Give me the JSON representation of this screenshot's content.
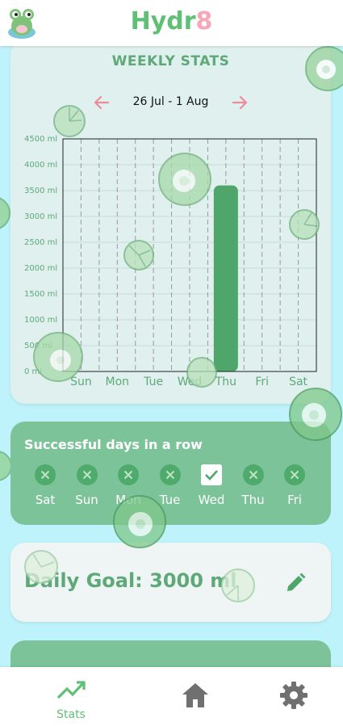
{
  "app": {
    "title_main": "Hydr",
    "title_accent": "8"
  },
  "stats": {
    "title": "WEEKLY STATS",
    "date_range": "26 Jul - 1 Aug"
  },
  "chart_data": {
    "type": "bar",
    "categories": [
      "Sun",
      "Mon",
      "Tue",
      "Wed",
      "Thu",
      "Fri",
      "Sat"
    ],
    "values": [
      0,
      0,
      0,
      0,
      3600,
      0,
      0
    ],
    "y_ticks": [
      "0 ml",
      "500 ml",
      "1000 ml",
      "1500 ml",
      "2000 ml",
      "2500 ml",
      "3000 ml",
      "3500 ml",
      "4000 ml",
      "4500 ml"
    ],
    "ylim": [
      0,
      4500
    ],
    "bar_color": "#4fa66b",
    "grid": true
  },
  "streak": {
    "title": "Successful days in a row",
    "days": [
      {
        "label": "Sat",
        "done": false
      },
      {
        "label": "Sun",
        "done": false
      },
      {
        "label": "Mon",
        "done": false
      },
      {
        "label": "Tue",
        "done": false
      },
      {
        "label": "Wed",
        "done": true
      },
      {
        "label": "Thu",
        "done": false
      },
      {
        "label": "Fri",
        "done": false
      }
    ]
  },
  "goal": {
    "text": "Daily Goal: 3000 ml"
  },
  "nav": {
    "stats_label": "Stats",
    "active": "stats"
  },
  "colors": {
    "accent": "#5fbf74",
    "pink": "#f6a8b8",
    "card_green": "#7cc39a",
    "background": "#bff3fb"
  }
}
